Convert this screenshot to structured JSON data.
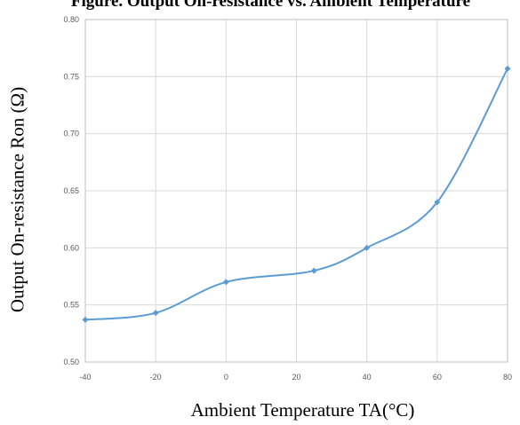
{
  "chart_data": {
    "type": "line",
    "title": "Figure. Output On-resistance vs. Ambient Temperature",
    "xlabel": "Ambient Temperature TA(°C)",
    "ylabel": "Output On-resistance  Ron (Ω)",
    "x": [
      -40,
      -20,
      0,
      25,
      40,
      60,
      80
    ],
    "series": [
      {
        "values": [
          0.537,
          0.543,
          0.57,
          0.58,
          0.6,
          0.64,
          0.757
        ]
      }
    ],
    "xlim": [
      -40,
      80
    ],
    "ylim": [
      0.5,
      0.8
    ],
    "xticks": [
      "-40",
      "-20",
      "0",
      "20",
      "40",
      "60",
      "80"
    ],
    "yticks": [
      "0.50",
      "0.55",
      "0.60",
      "0.65",
      "0.70",
      "0.75",
      "0.80"
    ],
    "grid": true,
    "marker": "diamond",
    "smooth": true,
    "colors": {
      "series": "#5b9bd5",
      "grid": "#d9d9d9",
      "axis": "#bfbfbf"
    }
  }
}
